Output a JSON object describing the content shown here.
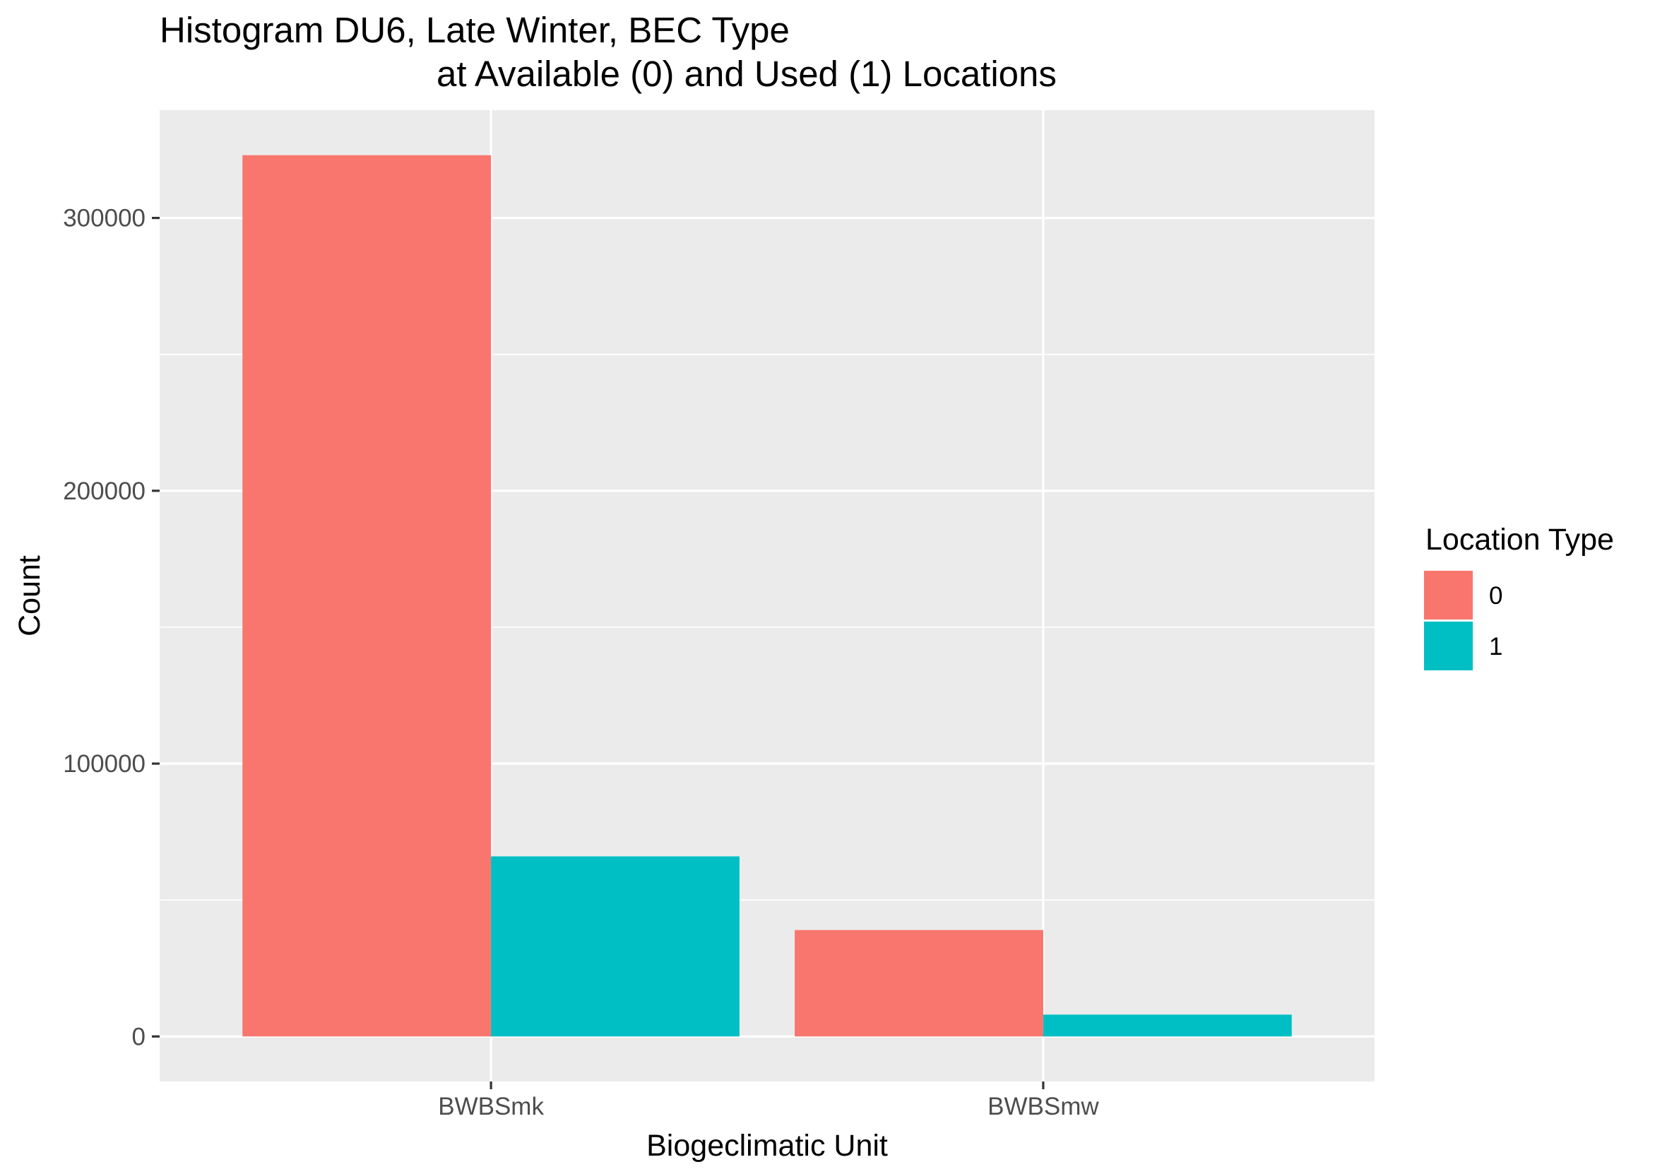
{
  "chart_data": {
    "type": "bar",
    "title_line1": "Histogram DU6, Late Winter, BEC Type",
    "title_line2": "at Available (0) and Used (1) Locations",
    "xlabel": "Biogeclimatic Unit",
    "ylabel": "Count",
    "categories": [
      "BWBSmk",
      "BWBSmw"
    ],
    "series": [
      {
        "name": "0",
        "color": "#F8766D",
        "values": [
          323000,
          39000
        ]
      },
      {
        "name": "1",
        "color": "#00BFC4",
        "values": [
          66000,
          8000
        ]
      }
    ],
    "yticks": [
      0,
      100000,
      200000,
      300000
    ],
    "ytick_labels": [
      "0",
      "100000",
      "200000",
      "300000"
    ],
    "ylim": [
      -16500,
      339500
    ],
    "grid": true,
    "legend": {
      "title": "Location Type",
      "position": "right"
    },
    "panel_color": "#EBEBEB",
    "grid_color": "#FFFFFF"
  }
}
